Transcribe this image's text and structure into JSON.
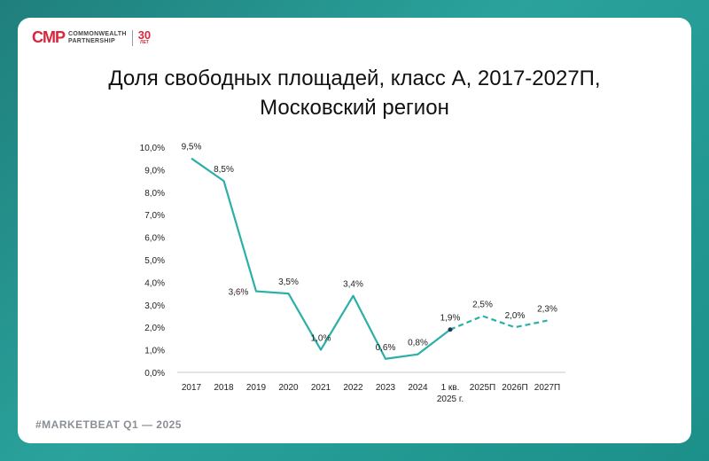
{
  "logo": {
    "mark": "CMP",
    "line1": "COMMONWEALTH",
    "line2": "PARTNERSHIP",
    "years": "30",
    "years_sub": "ЛЕТ"
  },
  "title_line1": "Доля свободных площадей, класс А, 2017-2027П,",
  "title_line2": "Московский регион",
  "footer": "#MARKETBEAT Q1  —  2025",
  "colors": {
    "line": "#2ab0a8",
    "accent": "#d7263d",
    "background": "#ffffff"
  },
  "chart_data": {
    "type": "line",
    "title": "Доля свободных площадей, класс А, 2017-2027П, Московский регион",
    "xlabel": "",
    "ylabel": "",
    "categories": [
      "2017",
      "2018",
      "2019",
      "2020",
      "2021",
      "2022",
      "2023",
      "2024",
      "1 кв.\n2025 г.",
      "2025П",
      "2026П",
      "2027П"
    ],
    "values": [
      9.5,
      8.5,
      3.6,
      3.5,
      1.0,
      3.4,
      0.6,
      0.8,
      1.9,
      2.5,
      2.0,
      2.3
    ],
    "labels": [
      "9,5%",
      "8,5%",
      "3,6%",
      "3,5%",
      "1,0%",
      "3,4%",
      "0,6%",
      "0,8%",
      "1,9%",
      "2,5%",
      "2,0%",
      "2,3%"
    ],
    "forecast_start_index": 8,
    "ylim": [
      0,
      10
    ],
    "yticks": [
      "0,0%",
      "1,0%",
      "2,0%",
      "3,0%",
      "4,0%",
      "5,0%",
      "6,0%",
      "7,0%",
      "8,0%",
      "9,0%",
      "10,0%"
    ],
    "grid": false,
    "legend": "none"
  }
}
